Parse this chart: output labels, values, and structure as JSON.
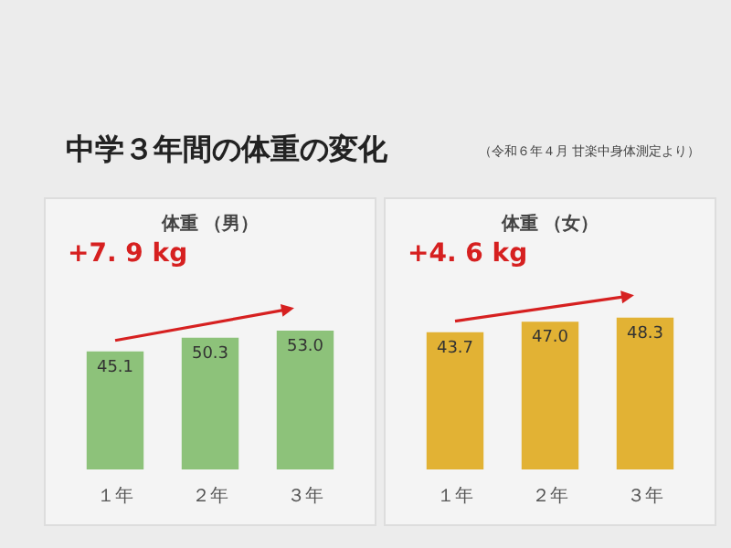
{
  "chart_data": [
    {
      "type": "bar",
      "title": "体重 （男）",
      "categories": [
        "１年",
        "２年",
        "３年"
      ],
      "values": [
        45.1,
        50.3,
        53.0
      ],
      "value_labels": [
        "45.1",
        "50.3",
        "53.0"
      ],
      "color": "#8dc27a",
      "tick_labels": "x",
      "annotations": [
        "中学３年間の体重の変化",
        "（令和６年４月 甘楽中身体測定より）",
        "+7. 9 kg"
      ]
    },
    {
      "type": "bar",
      "title": "体重 （女）",
      "categories": [
        "１年",
        "２年",
        "３年"
      ],
      "values": [
        43.7,
        47.0,
        48.3
      ],
      "value_labels": [
        "43.7",
        "47.0",
        "48.3"
      ],
      "color": "#e2b234",
      "tick_labels": "x",
      "annotations": [
        "+4. 6 kg"
      ]
    }
  ]
}
